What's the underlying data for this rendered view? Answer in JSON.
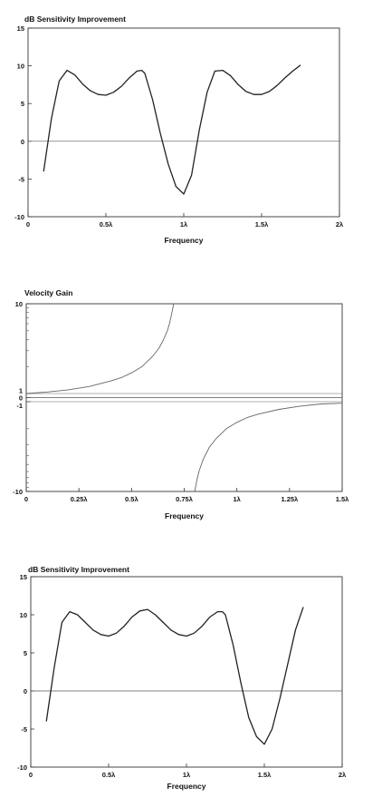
{
  "chart_data": [
    {
      "type": "line",
      "title": "dB Sensitivity Improvement",
      "xlabel": "Frequency",
      "ylabel": "",
      "xlim": [
        0,
        2
      ],
      "ylim": [
        -10,
        15
      ],
      "x_ticks": [
        0,
        0.5,
        1,
        1.5,
        2
      ],
      "x_tick_labels": [
        "0",
        "0.5λ",
        "1λ",
        "1.5λ",
        "2λ"
      ],
      "y_ticks": [
        -10,
        -5,
        0,
        5,
        10,
        15
      ],
      "y_tick_labels": [
        "-10",
        "-5",
        "0",
        "5",
        "10",
        "15"
      ],
      "grid": false,
      "zero_line": true,
      "series": [
        {
          "x": [
            0.1,
            0.15,
            0.2,
            0.25,
            0.3,
            0.35,
            0.4,
            0.45,
            0.5,
            0.55,
            0.6,
            0.65,
            0.7,
            0.73,
            0.75,
            0.8,
            0.85,
            0.9,
            0.95,
            1.0,
            1.05,
            1.1,
            1.15,
            1.2,
            1.25,
            1.3,
            1.35,
            1.4,
            1.45,
            1.5,
            1.55,
            1.6,
            1.65,
            1.7,
            1.75
          ],
          "y": [
            -4,
            3,
            8,
            9.4,
            8.8,
            7.6,
            6.7,
            6.2,
            6.1,
            6.5,
            7.3,
            8.4,
            9.3,
            9.4,
            9.0,
            5.5,
            1,
            -3,
            -6,
            -7,
            -4.5,
            1.5,
            6.5,
            9.3,
            9.4,
            8.7,
            7.5,
            6.6,
            6.2,
            6.2,
            6.6,
            7.4,
            8.4,
            9.3,
            10.1
          ]
        }
      ]
    },
    {
      "type": "line",
      "title": "Velocity Gain",
      "xlabel": "Frequency",
      "ylabel": "",
      "xlim": [
        0,
        1.5
      ],
      "x_ticks": [
        0,
        0.25,
        0.5,
        0.75,
        1,
        1.25,
        1.5
      ],
      "x_tick_labels": [
        "0",
        "0.25λ",
        "0.5λ",
        "0.75λ",
        "1λ",
        "1.25λ",
        "1.5λ"
      ],
      "y_tick_labels": [
        "10",
        "1",
        "0",
        "-1",
        "-10"
      ],
      "y_scale": "symmetric-log",
      "grid": false,
      "zero_line": true,
      "series": [
        {
          "x": [
            0,
            0.1,
            0.2,
            0.3,
            0.4,
            0.45,
            0.5,
            0.55,
            0.6,
            0.63,
            0.65,
            0.67,
            0.68,
            0.69,
            0.7
          ],
          "y": [
            1.0,
            1.04,
            1.1,
            1.2,
            1.38,
            1.5,
            1.7,
            2.0,
            2.6,
            3.2,
            3.9,
            5.0,
            6.0,
            7.6,
            10
          ]
        },
        {
          "x": [
            0.8,
            0.81,
            0.82,
            0.84,
            0.87,
            0.9,
            0.95,
            1.0,
            1.05,
            1.1,
            1.2,
            1.3,
            1.4,
            1.5
          ],
          "y": [
            -10,
            -7.5,
            -6.0,
            -4.4,
            -3.2,
            -2.6,
            -2.0,
            -1.7,
            -1.5,
            -1.38,
            -1.22,
            -1.12,
            -1.06,
            -1.04
          ]
        }
      ]
    },
    {
      "type": "line",
      "title": "dB Sensitivity Improvement",
      "xlabel": "Frequency",
      "ylabel": "",
      "xlim": [
        0,
        2
      ],
      "ylim": [
        -10,
        15
      ],
      "x_ticks": [
        0,
        0.5,
        1,
        1.5,
        2
      ],
      "x_tick_labels": [
        "0",
        "0.5λ",
        "1λ",
        "1.5λ",
        "2λ"
      ],
      "y_ticks": [
        -10,
        -5,
        0,
        5,
        10,
        15
      ],
      "y_tick_labels": [
        "-10",
        "-5",
        "0",
        "5",
        "10",
        "15"
      ],
      "grid": false,
      "zero_line": true,
      "series": [
        {
          "x": [
            0.1,
            0.15,
            0.2,
            0.25,
            0.3,
            0.35,
            0.4,
            0.45,
            0.5,
            0.55,
            0.6,
            0.65,
            0.7,
            0.75,
            0.8,
            0.85,
            0.9,
            0.95,
            1.0,
            1.05,
            1.1,
            1.15,
            1.2,
            1.23,
            1.25,
            1.3,
            1.35,
            1.4,
            1.45,
            1.5,
            1.55,
            1.6,
            1.65,
            1.7,
            1.75
          ],
          "y": [
            -4,
            3,
            9,
            10.4,
            10.0,
            9.0,
            8.0,
            7.4,
            7.2,
            7.6,
            8.5,
            9.7,
            10.5,
            10.7,
            10.0,
            9.0,
            8.0,
            7.4,
            7.2,
            7.6,
            8.5,
            9.7,
            10.4,
            10.4,
            10.0,
            6.0,
            1.0,
            -3.5,
            -6.0,
            -7.0,
            -5.0,
            -1.0,
            3.5,
            8.0,
            11.0
          ]
        }
      ]
    }
  ]
}
